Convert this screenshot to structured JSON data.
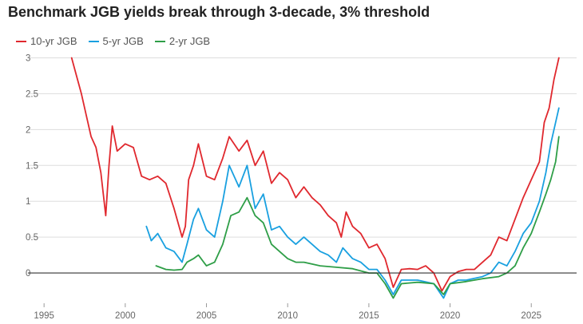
{
  "chart_data": {
    "type": "line",
    "title": "Benchmark JGB yields break through 3-decade, 3% threshold",
    "xlabel": "",
    "ylabel": "",
    "xlim": [
      1994.5,
      2027.3
    ],
    "ylim": [
      -0.4,
      3.05
    ],
    "x_ticks": [
      "1995",
      "2000",
      "2005",
      "2010",
      "2015",
      "2020",
      "2025"
    ],
    "y_ticks": [
      "3",
      "2.5",
      "2",
      "1.5",
      "1",
      "0.5",
      "0"
    ],
    "grid": true,
    "legend_position": "top-left",
    "colors": {
      "10y": "#e0282e",
      "5y": "#19a0e0",
      "2y": "#2e9e47",
      "zero_line": "#333333",
      "grid": "#dddddd"
    },
    "series": [
      {
        "name": "10-yr JGB",
        "key": "10y",
        "points": [
          [
            1996.7,
            3.0
          ],
          [
            1997.0,
            2.75
          ],
          [
            1997.3,
            2.5
          ],
          [
            1997.6,
            2.2
          ],
          [
            1997.9,
            1.9
          ],
          [
            1998.2,
            1.75
          ],
          [
            1998.5,
            1.4
          ],
          [
            1998.8,
            0.8
          ],
          [
            1999.0,
            1.5
          ],
          [
            1999.2,
            2.05
          ],
          [
            1999.5,
            1.7
          ],
          [
            2000.0,
            1.8
          ],
          [
            2000.5,
            1.75
          ],
          [
            2001.0,
            1.35
          ],
          [
            2001.5,
            1.3
          ],
          [
            2002.0,
            1.35
          ],
          [
            2002.5,
            1.25
          ],
          [
            2003.0,
            0.9
          ],
          [
            2003.5,
            0.5
          ],
          [
            2003.7,
            0.65
          ],
          [
            2003.9,
            1.3
          ],
          [
            2004.2,
            1.5
          ],
          [
            2004.5,
            1.8
          ],
          [
            2005.0,
            1.35
          ],
          [
            2005.5,
            1.3
          ],
          [
            2006.0,
            1.6
          ],
          [
            2006.4,
            1.9
          ],
          [
            2007.0,
            1.7
          ],
          [
            2007.5,
            1.85
          ],
          [
            2008.0,
            1.5
          ],
          [
            2008.5,
            1.7
          ],
          [
            2009.0,
            1.25
          ],
          [
            2009.5,
            1.4
          ],
          [
            2010.0,
            1.3
          ],
          [
            2010.5,
            1.05
          ],
          [
            2011.0,
            1.2
          ],
          [
            2011.5,
            1.05
          ],
          [
            2012.0,
            0.95
          ],
          [
            2012.5,
            0.8
          ],
          [
            2013.0,
            0.7
          ],
          [
            2013.3,
            0.5
          ],
          [
            2013.6,
            0.85
          ],
          [
            2014.0,
            0.65
          ],
          [
            2014.5,
            0.55
          ],
          [
            2015.0,
            0.35
          ],
          [
            2015.5,
            0.4
          ],
          [
            2016.0,
            0.2
          ],
          [
            2016.5,
            -0.2
          ],
          [
            2017.0,
            0.05
          ],
          [
            2017.5,
            0.06
          ],
          [
            2018.0,
            0.05
          ],
          [
            2018.5,
            0.1
          ],
          [
            2019.0,
            0.0
          ],
          [
            2019.5,
            -0.25
          ],
          [
            2020.0,
            -0.05
          ],
          [
            2020.5,
            0.02
          ],
          [
            2021.0,
            0.05
          ],
          [
            2021.5,
            0.05
          ],
          [
            2022.0,
            0.15
          ],
          [
            2022.5,
            0.25
          ],
          [
            2023.0,
            0.5
          ],
          [
            2023.5,
            0.45
          ],
          [
            2024.0,
            0.75
          ],
          [
            2024.5,
            1.05
          ],
          [
            2025.0,
            1.3
          ],
          [
            2025.5,
            1.55
          ],
          [
            2025.8,
            2.1
          ],
          [
            2026.1,
            2.3
          ],
          [
            2026.4,
            2.7
          ],
          [
            2026.7,
            3.0
          ]
        ]
      },
      {
        "name": "5-yr JGB",
        "key": "5y",
        "points": [
          [
            2001.3,
            0.65
          ],
          [
            2001.6,
            0.45
          ],
          [
            2002.0,
            0.55
          ],
          [
            2002.5,
            0.35
          ],
          [
            2003.0,
            0.3
          ],
          [
            2003.5,
            0.15
          ],
          [
            2003.8,
            0.4
          ],
          [
            2004.2,
            0.75
          ],
          [
            2004.5,
            0.9
          ],
          [
            2005.0,
            0.6
          ],
          [
            2005.5,
            0.5
          ],
          [
            2006.0,
            1.0
          ],
          [
            2006.4,
            1.5
          ],
          [
            2007.0,
            1.2
          ],
          [
            2007.5,
            1.5
          ],
          [
            2008.0,
            0.9
          ],
          [
            2008.5,
            1.1
          ],
          [
            2009.0,
            0.6
          ],
          [
            2009.5,
            0.65
          ],
          [
            2010.0,
            0.5
          ],
          [
            2010.5,
            0.4
          ],
          [
            2011.0,
            0.5
          ],
          [
            2011.5,
            0.4
          ],
          [
            2012.0,
            0.3
          ],
          [
            2012.5,
            0.25
          ],
          [
            2013.0,
            0.15
          ],
          [
            2013.4,
            0.35
          ],
          [
            2014.0,
            0.2
          ],
          [
            2014.5,
            0.15
          ],
          [
            2015.0,
            0.05
          ],
          [
            2015.5,
            0.05
          ],
          [
            2016.0,
            -0.1
          ],
          [
            2016.5,
            -0.3
          ],
          [
            2017.0,
            -0.1
          ],
          [
            2018.0,
            -0.1
          ],
          [
            2019.0,
            -0.15
          ],
          [
            2019.6,
            -0.35
          ],
          [
            2020.0,
            -0.15
          ],
          [
            2020.5,
            -0.1
          ],
          [
            2021.0,
            -0.1
          ],
          [
            2022.0,
            -0.05
          ],
          [
            2022.5,
            0.0
          ],
          [
            2023.0,
            0.15
          ],
          [
            2023.5,
            0.1
          ],
          [
            2024.0,
            0.3
          ],
          [
            2024.5,
            0.55
          ],
          [
            2025.0,
            0.7
          ],
          [
            2025.5,
            1.0
          ],
          [
            2025.9,
            1.4
          ],
          [
            2026.2,
            1.8
          ],
          [
            2026.5,
            2.1
          ],
          [
            2026.7,
            2.3
          ]
        ]
      },
      {
        "name": "2-yr JGB",
        "key": "2y",
        "points": [
          [
            2001.9,
            0.1
          ],
          [
            2002.5,
            0.05
          ],
          [
            2003.0,
            0.04
          ],
          [
            2003.5,
            0.05
          ],
          [
            2003.8,
            0.15
          ],
          [
            2004.2,
            0.2
          ],
          [
            2004.5,
            0.25
          ],
          [
            2005.0,
            0.1
          ],
          [
            2005.5,
            0.15
          ],
          [
            2006.0,
            0.4
          ],
          [
            2006.5,
            0.8
          ],
          [
            2007.0,
            0.85
          ],
          [
            2007.5,
            1.05
          ],
          [
            2008.0,
            0.8
          ],
          [
            2008.5,
            0.7
          ],
          [
            2009.0,
            0.4
          ],
          [
            2009.5,
            0.3
          ],
          [
            2010.0,
            0.2
          ],
          [
            2010.5,
            0.15
          ],
          [
            2011.0,
            0.15
          ],
          [
            2012.0,
            0.1
          ],
          [
            2013.0,
            0.08
          ],
          [
            2014.0,
            0.06
          ],
          [
            2015.0,
            0.0
          ],
          [
            2015.5,
            0.0
          ],
          [
            2016.0,
            -0.15
          ],
          [
            2016.5,
            -0.35
          ],
          [
            2017.0,
            -0.15
          ],
          [
            2018.0,
            -0.13
          ],
          [
            2019.0,
            -0.15
          ],
          [
            2019.6,
            -0.3
          ],
          [
            2020.0,
            -0.15
          ],
          [
            2021.0,
            -0.12
          ],
          [
            2022.0,
            -0.08
          ],
          [
            2023.0,
            -0.05
          ],
          [
            2023.5,
            0.0
          ],
          [
            2024.0,
            0.1
          ],
          [
            2024.5,
            0.35
          ],
          [
            2025.0,
            0.55
          ],
          [
            2025.5,
            0.85
          ],
          [
            2025.9,
            1.1
          ],
          [
            2026.2,
            1.3
          ],
          [
            2026.5,
            1.55
          ],
          [
            2026.7,
            1.9
          ]
        ]
      }
    ]
  }
}
